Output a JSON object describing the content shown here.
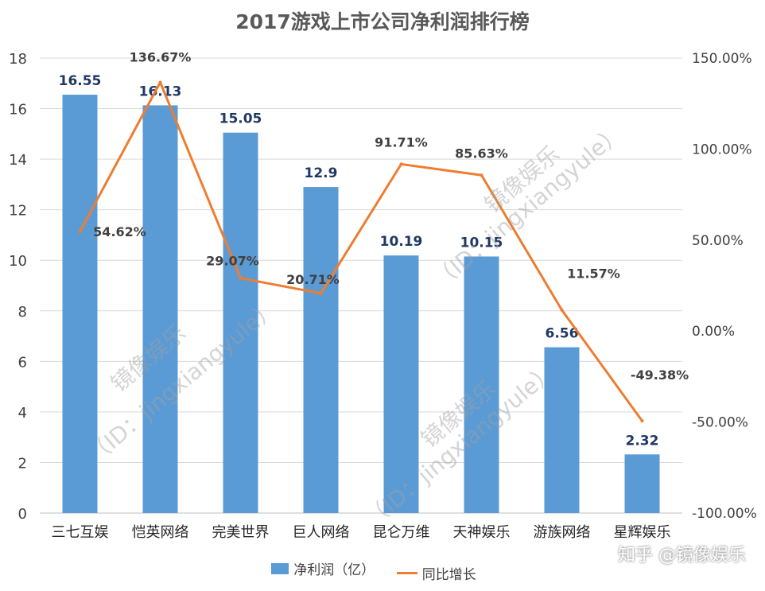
{
  "chart_data": {
    "type": "bar",
    "title": "2017游戏上市公司净利润排行榜",
    "categories": [
      "三七互娱",
      "恺英网络",
      "完美世界",
      "巨人网络",
      "昆仑万维",
      "天神娱乐",
      "游族网络",
      "星辉娱乐"
    ],
    "series": [
      {
        "name": "净利润（亿）",
        "type": "bar",
        "axis": "left",
        "color": "#5b9bd5",
        "values": [
          16.55,
          16.13,
          15.05,
          12.9,
          10.19,
          10.15,
          6.56,
          2.32
        ],
        "labels": [
          "16.55",
          "16.13",
          "15.05",
          "12.9",
          "10.19",
          "10.15",
          "6.56",
          "2.32"
        ]
      },
      {
        "name": "同比增长",
        "type": "line",
        "axis": "right",
        "color": "#ed7d31",
        "values": [
          54.62,
          136.67,
          29.07,
          20.71,
          91.71,
          85.63,
          11.57,
          -49.38
        ],
        "labels": [
          "54.62%",
          "136.67%",
          "29.07%",
          "20.71%",
          "91.71%",
          "85.63%",
          "11.57%",
          "-49.38%"
        ]
      }
    ],
    "y_left": {
      "min": 0,
      "max": 18,
      "ticks": [
        "0",
        "2",
        "4",
        "6",
        "8",
        "10",
        "12",
        "14",
        "16",
        "18"
      ]
    },
    "y_right": {
      "min": -100,
      "max": 150,
      "ticks": [
        "-100.00%",
        "-50.00%",
        "0.00%",
        "50.00%",
        "100.00%",
        "150.00%"
      ]
    },
    "grid": true,
    "legend_position": "bottom"
  },
  "watermarks": {
    "site": "知乎 @镜像娱乐",
    "line1": "镜像娱乐",
    "line2": "（ID：jingxiangyule）"
  }
}
